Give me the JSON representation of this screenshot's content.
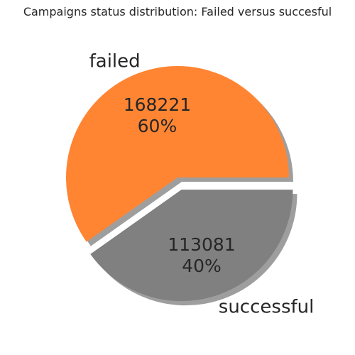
{
  "chart_data": {
    "type": "pie",
    "title": "Campaigns status distribution: Failed versus succesful",
    "categories": [
      "failed",
      "successful"
    ],
    "values": [
      168221,
      113081
    ],
    "percent_labels": [
      "60%",
      "40%"
    ],
    "value_labels": [
      "168221",
      "113081"
    ],
    "colors": [
      "#ff8533",
      "#808080"
    ],
    "exploded": [
      false,
      true
    ],
    "shadow": true,
    "legend": "none"
  }
}
